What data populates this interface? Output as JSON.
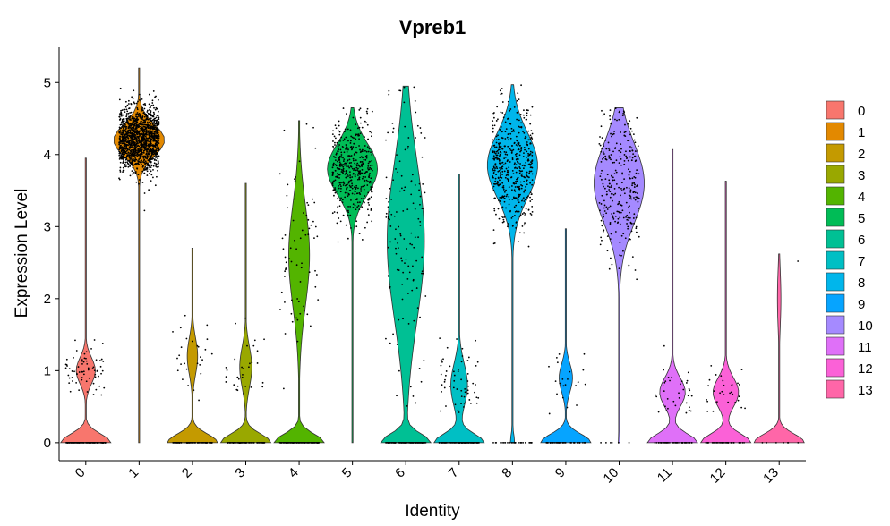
{
  "chart_data": {
    "type": "violin",
    "title": "Vpreb1",
    "xlabel": "Identity",
    "ylabel": "Expression Level",
    "ylim": [
      -0.25,
      5.5
    ],
    "yticks": [
      "0",
      "1",
      "2",
      "3",
      "4",
      "5"
    ],
    "legend_position": "right",
    "legend": [
      "0",
      "1",
      "2",
      "3",
      "4",
      "5",
      "6",
      "7",
      "8",
      "9",
      "10",
      "11",
      "12",
      "13"
    ],
    "series": [
      {
        "category": "0",
        "color": "#F8766D",
        "max": 3.95,
        "zero_frac": 0.62,
        "center": 1.0,
        "spread": 0.18,
        "n_points": 180
      },
      {
        "category": "1",
        "color": "#E38900",
        "max": 5.2,
        "zero_frac": 0.0,
        "center": 4.2,
        "spread": 0.22,
        "n_points": 1400
      },
      {
        "category": "2",
        "color": "#C49A00",
        "max": 2.7,
        "zero_frac": 0.75,
        "center": 1.2,
        "spread": 0.25,
        "n_points": 110
      },
      {
        "category": "3",
        "color": "#99A800",
        "max": 3.6,
        "zero_frac": 0.72,
        "center": 1.05,
        "spread": 0.28,
        "n_points": 110
      },
      {
        "category": "4",
        "color": "#53B400",
        "max": 4.47,
        "zero_frac": 0.6,
        "center": 2.6,
        "spread": 0.7,
        "n_points": 180
      },
      {
        "category": "5",
        "color": "#00BC56",
        "max": 4.65,
        "zero_frac": 0.0,
        "center": 3.8,
        "spread": 0.35,
        "n_points": 450
      },
      {
        "category": "6",
        "color": "#00C094",
        "max": 4.95,
        "zero_frac": 0.45,
        "center": 2.8,
        "spread": 1.1,
        "n_points": 250
      },
      {
        "category": "7",
        "color": "#00BFC4",
        "max": 3.73,
        "zero_frac": 0.65,
        "center": 0.8,
        "spread": 0.3,
        "n_points": 170
      },
      {
        "category": "8",
        "color": "#00B6EB",
        "max": 4.97,
        "zero_frac": 0.05,
        "center": 3.85,
        "spread": 0.45,
        "n_points": 520
      },
      {
        "category": "9",
        "color": "#06A4FF",
        "max": 2.97,
        "zero_frac": 0.7,
        "center": 0.9,
        "spread": 0.2,
        "n_points": 70
      },
      {
        "category": "10",
        "color": "#A58AFF",
        "max": 4.65,
        "zero_frac": 0.02,
        "center": 3.6,
        "spread": 0.55,
        "n_points": 300
      },
      {
        "category": "11",
        "color": "#DF70F8",
        "max": 4.07,
        "zero_frac": 0.55,
        "center": 0.7,
        "spread": 0.2,
        "n_points": 80
      },
      {
        "category": "12",
        "color": "#FB61D7",
        "max": 3.63,
        "zero_frac": 0.55,
        "center": 0.7,
        "spread": 0.2,
        "n_points": 70
      },
      {
        "category": "13",
        "color": "#FF66A8",
        "max": 2.62,
        "zero_frac": 0.9,
        "center": 2.0,
        "spread": 0.4,
        "n_points": 8
      }
    ]
  }
}
